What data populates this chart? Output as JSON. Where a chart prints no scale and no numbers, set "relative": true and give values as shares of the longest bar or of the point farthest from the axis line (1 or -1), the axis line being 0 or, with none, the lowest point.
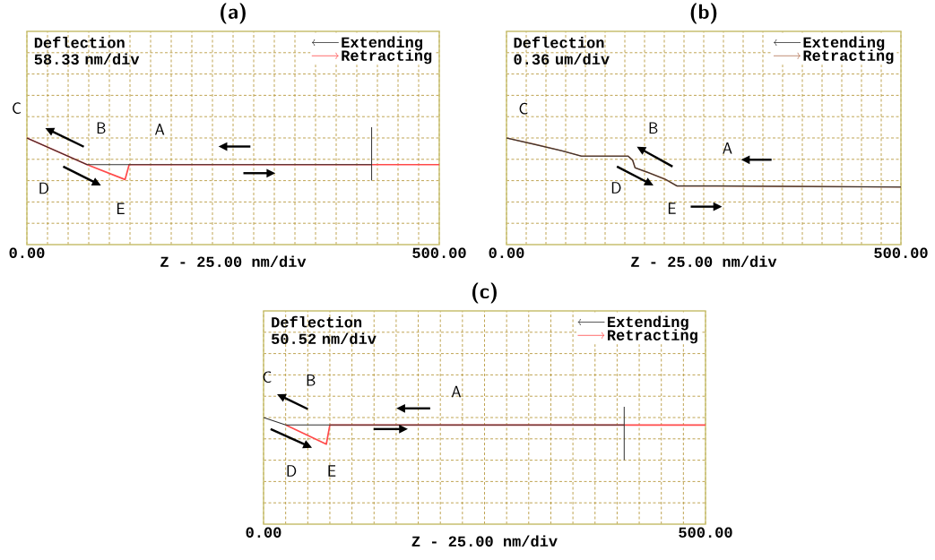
{
  "chart_data": [
    {
      "type": "line",
      "title": "(a)",
      "ylabel": "Deflection 58.33 nm/div",
      "xlabel": "Z - 25.00 nm/div",
      "relative": true,
      "xlim": [
        0,
        500
      ],
      "xticks": [
        {
          "value": 0,
          "label": "0.00"
        },
        {
          "value": 25,
          "label": null
        },
        {
          "value": 50,
          "label": null
        },
        {
          "value": 75,
          "label": null
        },
        {
          "value": 100,
          "label": null
        },
        {
          "value": 125,
          "label": null
        },
        {
          "value": 150,
          "label": null
        },
        {
          "value": 175,
          "label": null
        },
        {
          "value": 200,
          "label": null
        },
        {
          "value": 225,
          "label": null
        },
        {
          "value": 250,
          "label": null
        },
        {
          "value": 275,
          "label": null
        },
        {
          "value": 300,
          "label": null
        },
        {
          "value": 325,
          "label": null
        },
        {
          "value": 350,
          "label": null
        },
        {
          "value": 375,
          "label": null
        },
        {
          "value": 400,
          "label": null
        },
        {
          "value": 425,
          "label": null
        },
        {
          "value": 450,
          "label": null
        },
        {
          "value": 475,
          "label": null
        },
        {
          "value": 500,
          "label": "500.00"
        }
      ],
      "grid": true,
      "legend": "top right",
      "series": [
        {
          "name": "Extending",
          "color": "#303030",
          "x": [
            0,
            73,
            418
          ],
          "values": [
            1,
            0.75,
            0.75
          ]
        },
        {
          "name": "Retracting",
          "color": "#ff4a4a",
          "x": [
            0,
            73,
            119,
            124,
            500
          ],
          "values": [
            1,
            0.75,
            0.61,
            0.75,
            0.75
          ]
        }
      ],
      "ref_lines": [
        {
          "axis": "x",
          "value": 418,
          "color": "#303030"
        }
      ],
      "annotations": [
        "C",
        "B",
        "A",
        "D",
        "E"
      ]
    },
    {
      "type": "line",
      "title": "(b)",
      "ylabel": "Deflection 0.36 um/div",
      "xlabel": "Z - 25.00 nm/div",
      "relative": true,
      "xlim": [
        0,
        500
      ],
      "xticks": [
        {
          "value": 0,
          "label": "0.00"
        },
        {
          "value": 25,
          "label": null
        },
        {
          "value": 50,
          "label": null
        },
        {
          "value": 75,
          "label": null
        },
        {
          "value": 100,
          "label": null
        },
        {
          "value": 125,
          "label": null
        },
        {
          "value": 150,
          "label": null
        },
        {
          "value": 175,
          "label": null
        },
        {
          "value": 200,
          "label": null
        },
        {
          "value": 225,
          "label": null
        },
        {
          "value": 250,
          "label": null
        },
        {
          "value": 275,
          "label": null
        },
        {
          "value": 300,
          "label": null
        },
        {
          "value": 325,
          "label": null
        },
        {
          "value": 350,
          "label": null
        },
        {
          "value": 375,
          "label": null
        },
        {
          "value": 400,
          "label": null
        },
        {
          "value": 425,
          "label": null
        },
        {
          "value": 450,
          "label": null
        },
        {
          "value": 475,
          "label": null
        },
        {
          "value": 500,
          "label": "500.00"
        }
      ],
      "grid": true,
      "legend": "top right",
      "series": [
        {
          "name": "Extending",
          "color": "#303030",
          "x": [
            0,
            36,
            70,
            95,
            154,
            160,
            163,
            178,
            202,
            216,
            266,
            500
          ],
          "values": [
            1,
            0.94,
            0.88,
            0.83,
            0.83,
            0.79,
            0.72,
            0.68,
            0.61,
            0.55,
            0.55,
            0.54
          ]
        },
        {
          "name": "Retracting",
          "color": "#b07050",
          "x": [
            0,
            36,
            70,
            95,
            154,
            160,
            163,
            178,
            202,
            216,
            266,
            500
          ],
          "values": [
            1,
            0.94,
            0.88,
            0.83,
            0.83,
            0.79,
            0.72,
            0.68,
            0.61,
            0.55,
            0.55,
            0.54
          ]
        }
      ],
      "annotations": [
        "C",
        "B",
        "A",
        "D",
        "E"
      ]
    },
    {
      "type": "line",
      "title": "(c)",
      "ylabel": "Deflection 50.52 nm/div",
      "xlabel": "Z - 25.00 nm/div",
      "relative": true,
      "xlim": [
        0,
        500
      ],
      "xticks": [
        {
          "value": 0,
          "label": "0.00"
        },
        {
          "value": 25,
          "label": null
        },
        {
          "value": 50,
          "label": null
        },
        {
          "value": 75,
          "label": null
        },
        {
          "value": 100,
          "label": null
        },
        {
          "value": 125,
          "label": null
        },
        {
          "value": 150,
          "label": null
        },
        {
          "value": 175,
          "label": null
        },
        {
          "value": 200,
          "label": null
        },
        {
          "value": 225,
          "label": null
        },
        {
          "value": 250,
          "label": null
        },
        {
          "value": 275,
          "label": null
        },
        {
          "value": 300,
          "label": null
        },
        {
          "value": 325,
          "label": null
        },
        {
          "value": 350,
          "label": null
        },
        {
          "value": 375,
          "label": null
        },
        {
          "value": 400,
          "label": null
        },
        {
          "value": 425,
          "label": null
        },
        {
          "value": 450,
          "label": null
        },
        {
          "value": 475,
          "label": null
        },
        {
          "value": 500,
          "label": "500.00"
        }
      ],
      "grid": true,
      "legend": "top right",
      "series": [
        {
          "name": "Extending",
          "color": "#303030",
          "x": [
            0,
            25,
            408
          ],
          "values": [
            1,
            0.93,
            0.93
          ]
        },
        {
          "name": "Retracting",
          "color": "#ff4a4a",
          "x": [
            25,
            71,
            75,
            500
          ],
          "values": [
            0.93,
            0.75,
            0.93,
            0.93
          ]
        }
      ],
      "ref_lines": [
        {
          "axis": "x",
          "value": 408,
          "color": "#303030"
        }
      ],
      "annotations": [
        "C",
        "B",
        "A",
        "D",
        "E"
      ]
    }
  ]
}
